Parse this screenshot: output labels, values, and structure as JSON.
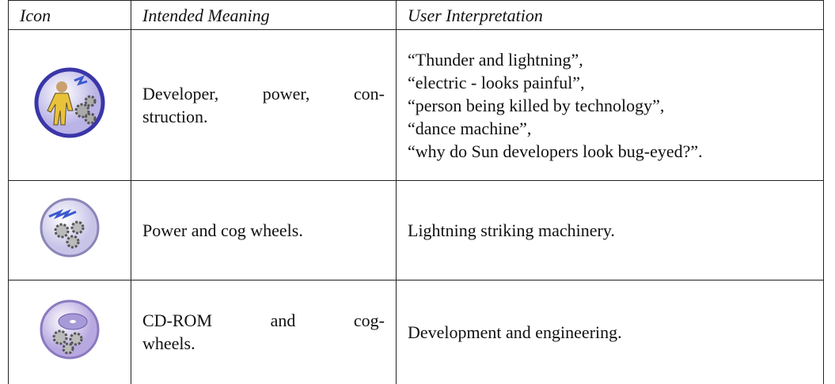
{
  "table": {
    "header": [
      "Icon",
      "Intended Meaning",
      "User Interpretation"
    ],
    "rows": [
      {
        "meaning": [
          "Developer, power, con-",
          "struction."
        ],
        "interpretation": [
          "“Thunder and lightning”,",
          "“electric - looks painful”,",
          "“person being killed by technology”,",
          "“dance machine”,",
          "“why do Sun developers look bug-eyed?”."
        ]
      },
      {
        "meaning": [
          "Power and cog wheels."
        ],
        "interpretation": [
          "Lightning striking machinery."
        ]
      },
      {
        "meaning": [
          "CD-ROM and cog-",
          "wheels."
        ],
        "interpretation": [
          "Development and engineering."
        ]
      }
    ]
  }
}
